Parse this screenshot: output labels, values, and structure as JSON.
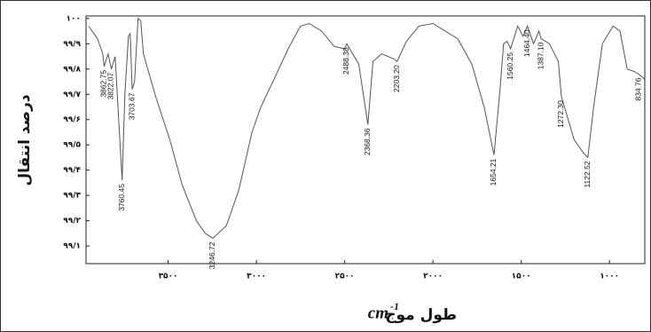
{
  "chart_data": {
    "type": "line",
    "y_label": "درصد انتقال",
    "x_label": "طول موج",
    "x_unit": "cm",
    "x_unit_exp": "-1",
    "color": "#555555",
    "x": [
      3950,
      3900,
      3870,
      3862.75,
      3840,
      3822.07,
      3800,
      3760.45,
      3745,
      3725,
      3715,
      3703.67,
      3690,
      3670,
      3655,
      3640,
      3570,
      3490,
      3420,
      3340,
      3290,
      3246.72,
      3170,
      3100,
      3025,
      2975,
      2900,
      2820,
      2750,
      2700,
      2630,
      2560,
      2500,
      2488.38,
      2420,
      2368.36,
      2340,
      2290,
      2220,
      2203.2,
      2150,
      2080,
      2000,
      1930,
      1860,
      1780,
      1710,
      1654.21,
      1620,
      1600,
      1580,
      1560.25,
      1520,
      1490,
      1464.4,
      1430,
      1400,
      1387.1,
      1340,
      1290,
      1272.3,
      1200,
      1150,
      1122.52,
      1090,
      1040,
      980,
      940,
      900,
      860,
      834.76,
      800
    ],
    "values": [
      99.97,
      99.92,
      99.86,
      99.81,
      99.86,
      99.8,
      99.85,
      99.36,
      99.7,
      99.93,
      99.94,
      99.72,
      99.75,
      100.0,
      99.99,
      99.86,
      99.69,
      99.52,
      99.34,
      99.2,
      99.15,
      99.13,
      99.18,
      99.32,
      99.55,
      99.65,
      99.76,
      99.88,
      99.97,
      99.98,
      99.95,
      99.89,
      99.88,
      99.9,
      99.82,
      99.58,
      99.83,
      99.86,
      99.84,
      99.83,
      99.91,
      99.97,
      99.98,
      99.95,
      99.92,
      99.82,
      99.65,
      99.46,
      99.72,
      99.9,
      99.91,
      99.88,
      99.97,
      99.93,
      99.97,
      99.9,
      99.95,
      99.92,
      99.9,
      99.83,
      99.69,
      99.52,
      99.47,
      99.45,
      99.65,
      99.9,
      99.97,
      99.95,
      99.8,
      99.79,
      99.78,
      99.76
    ],
    "peaks": [
      {
        "value": 3862.75,
        "label": "3862.75"
      },
      {
        "value": 3822.07,
        "label": "3822.07"
      },
      {
        "value": 3760.45,
        "label": "3760.45"
      },
      {
        "value": 3703.67,
        "label": "3703.67"
      },
      {
        "value": 3246.72,
        "label": "3246.72"
      },
      {
        "value": 2488.38,
        "label": "2488.38"
      },
      {
        "value": 2368.36,
        "label": "2368.36"
      },
      {
        "value": 2203.2,
        "label": "2203.20"
      },
      {
        "value": 1654.21,
        "label": "1654.21"
      },
      {
        "value": 1560.25,
        "label": "1560.25"
      },
      {
        "value": 1464.4,
        "label": "1464.40"
      },
      {
        "value": 1387.1,
        "label": "1387.10"
      },
      {
        "value": 1272.3,
        "label": "1272.30"
      },
      {
        "value": 1122.52,
        "label": "1122.52"
      },
      {
        "value": 834.76,
        "label": "834.76"
      }
    ],
    "xlim": [
      3965,
      800
    ],
    "ylim": [
      99.03,
      100.01
    ],
    "xticks": [
      {
        "value": 3500,
        "label": "۳۵۰۰"
      },
      {
        "value": 3000,
        "label": "۳۰۰۰"
      },
      {
        "value": 2500,
        "label": "۲۵۰۰"
      },
      {
        "value": 2000,
        "label": "۲۰۰۰"
      },
      {
        "value": 1500,
        "label": "۱۵۰۰"
      },
      {
        "value": 1000,
        "label": "۱۰۰۰"
      }
    ],
    "yticks": [
      {
        "value": 100,
        "label": "۱۰۰"
      },
      {
        "value": 99.9,
        "label": "۹۹/۹"
      },
      {
        "value": 99.8,
        "label": "۹۹/۸"
      },
      {
        "value": 99.7,
        "label": "۹۹/۷"
      },
      {
        "value": 99.6,
        "label": "۹۹/۶"
      },
      {
        "value": 99.5,
        "label": "۹۹/۵"
      },
      {
        "value": 99.4,
        "label": "۹۹/۴"
      },
      {
        "value": 99.3,
        "label": "۹۹/۳"
      },
      {
        "value": 99.2,
        "label": "۹۹/۲"
      },
      {
        "value": 99.1,
        "label": "۹۹/۱"
      }
    ]
  }
}
